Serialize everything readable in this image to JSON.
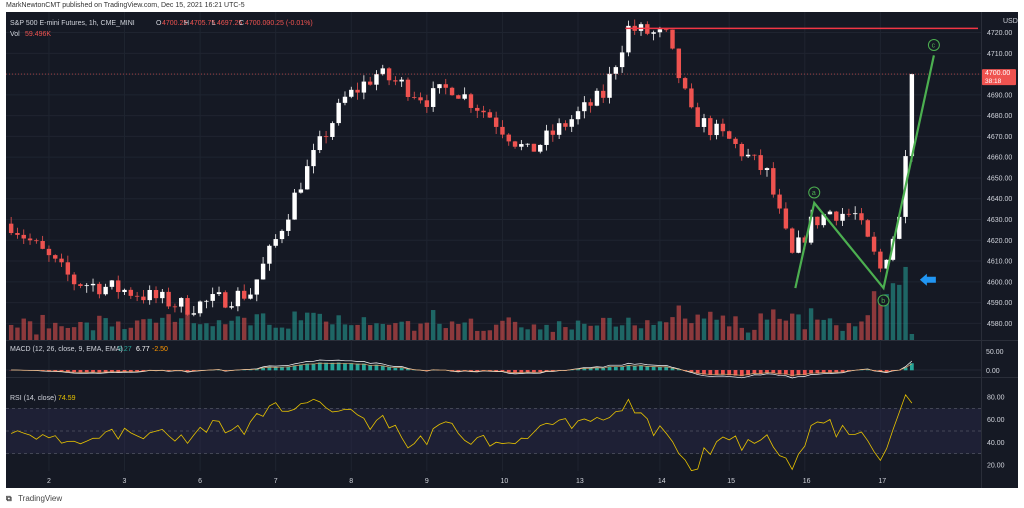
{
  "header": {
    "publisher": "MarkNewtonCMT published on TradingView.com, Dec 15, 2021 16:21 UTC-5"
  },
  "footer": {
    "brand": "TradingView"
  },
  "colors": {
    "background": "#151924",
    "up": "#ffffff",
    "down": "#ef5350",
    "volume_up": "#26a69a",
    "volume_down": "#ef5350",
    "wave": "#4caf50",
    "resistance": "#f23645",
    "arrow": "#2196f3",
    "rsi_line": "#e6c200",
    "macd_line": "#d6a16a",
    "signal_line": "#ffffff"
  },
  "chart_data": [
    {
      "type": "candlestick",
      "title": "S&P 500 E-mini Futures, 1h, CME_MINI",
      "ohlc": {
        "open": "4700.25",
        "high": "4705.75",
        "low": "4697.25",
        "close": "4700.00",
        "change": "-0.25 (-0.01%)"
      },
      "volume_label": "Vol",
      "volume_value": "59.496K",
      "currency": "USD",
      "ylim": [
        4572,
        4727
      ],
      "y_ticks": [
        "4720.00",
        "4710.00",
        "4700.00",
        "4690.00",
        "4680.00",
        "4670.00",
        "4660.00",
        "4650.00",
        "4640.00",
        "4630.00",
        "4620.00",
        "4610.00",
        "4600.00",
        "4590.00",
        "4580.00"
      ],
      "last_price": "4700.00",
      "countdown": "38:18",
      "x_ticks": [
        "2",
        "3",
        "6",
        "7",
        "8",
        "9",
        "10",
        "13",
        "14",
        "15",
        "16",
        "17"
      ],
      "anchors": [
        {
          "t": 0,
          "p": 4628
        },
        {
          "t": 10,
          "p": 4600
        },
        {
          "t": 18,
          "p": 4596
        },
        {
          "t": 28,
          "p": 4588
        },
        {
          "t": 34,
          "p": 4592
        },
        {
          "t": 38,
          "p": 4595
        },
        {
          "t": 42,
          "p": 4620
        },
        {
          "t": 46,
          "p": 4648
        },
        {
          "t": 50,
          "p": 4672
        },
        {
          "t": 53,
          "p": 4688
        },
        {
          "t": 58,
          "p": 4700
        },
        {
          "t": 62,
          "p": 4695
        },
        {
          "t": 66,
          "p": 4688
        },
        {
          "t": 70,
          "p": 4694
        },
        {
          "t": 76,
          "p": 4680
        },
        {
          "t": 82,
          "p": 4662
        },
        {
          "t": 88,
          "p": 4676
        },
        {
          "t": 94,
          "p": 4690
        },
        {
          "t": 98,
          "p": 4722
        },
        {
          "t": 104,
          "p": 4718
        },
        {
          "t": 108,
          "p": 4680
        },
        {
          "t": 114,
          "p": 4668
        },
        {
          "t": 120,
          "p": 4652
        },
        {
          "t": 124,
          "p": 4612
        },
        {
          "t": 127,
          "p": 4628
        },
        {
          "t": 130,
          "p": 4634
        },
        {
          "t": 134,
          "p": 4632
        },
        {
          "t": 138,
          "p": 4606
        },
        {
          "t": 141,
          "p": 4630
        },
        {
          "t": 143,
          "p": 4700
        }
      ],
      "annotations": {
        "resistance_price": 4722,
        "wave_path": [
          {
            "t": 124.5,
            "p": 4597
          },
          {
            "t": 127.5,
            "p": 4638
          },
          {
            "t": 138.5,
            "p": 4597
          },
          {
            "t": 146.5,
            "p": 4709
          }
        ],
        "labels": [
          {
            "text": "a",
            "t": 127.5,
            "p": 4643
          },
          {
            "text": "b",
            "t": 138.5,
            "p": 4591
          },
          {
            "text": "c",
            "t": 146.5,
            "p": 4714
          }
        ]
      }
    },
    {
      "type": "macd",
      "title": "MACD (12, 26, close, 9, EMA, EMA)",
      "values": [
        "9.27",
        "6.77",
        "-2.50"
      ],
      "y_ticks": [
        "50.00",
        "0.00"
      ]
    },
    {
      "type": "rsi",
      "title": "RSI (14, close)",
      "value": "74.59",
      "y_ticks": [
        "80.00",
        "60.00",
        "40.00",
        "20.00"
      ],
      "upper_band": 70,
      "lower_band": 30
    }
  ]
}
